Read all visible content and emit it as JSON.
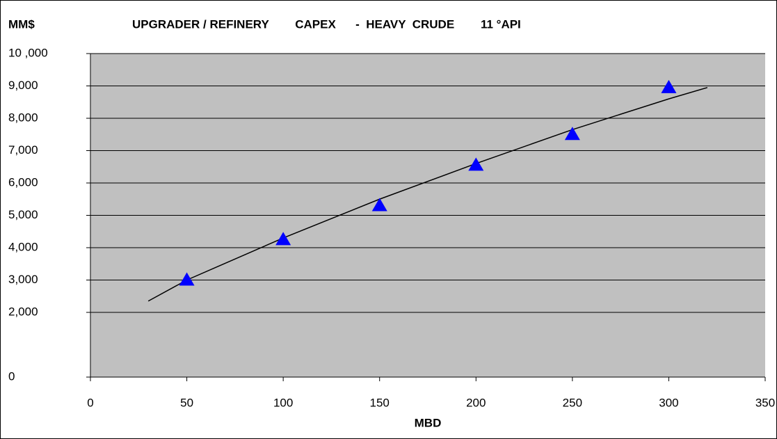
{
  "chart_data": {
    "type": "scatter",
    "title": "UPGRADER / REFINERY        CAPEX      -  HEAVY  CRUDE        11 °API",
    "y_label": "MM$",
    "x_label": "MBD",
    "xlim": [
      0,
      350
    ],
    "xticks": [
      0,
      50,
      100,
      150,
      200,
      250,
      300,
      350
    ],
    "ylim": [
      0,
      10000
    ],
    "yticks": [
      0,
      {
        "value": 2000,
        "label": "2,000"
      },
      {
        "value": 3000,
        "label": "3,000"
      },
      {
        "value": 4000,
        "label": "4,000"
      },
      {
        "value": 5000,
        "label": "5,000"
      },
      {
        "value": 6000,
        "label": "6,000"
      },
      {
        "value": 7000,
        "label": "7,000"
      },
      {
        "value": 8000,
        "label": "8,000"
      },
      {
        "value": 9000,
        "label": "9,000"
      },
      {
        "value": 10000,
        "label": "10 ,000"
      }
    ],
    "grid": true,
    "plot_background": "#c0c0c0",
    "points": {
      "color": "#0000ff",
      "marker": "triangle",
      "x": [
        50,
        100,
        150,
        200,
        250,
        300
      ],
      "values": [
        3000,
        4250,
        5300,
        6550,
        7500,
        8950
      ]
    },
    "trend": {
      "color": "#000000",
      "x": [
        30,
        50,
        100,
        150,
        200,
        250,
        300,
        320
      ],
      "values": [
        2350,
        3000,
        4300,
        5500,
        6600,
        7650,
        8600,
        8950
      ]
    }
  }
}
